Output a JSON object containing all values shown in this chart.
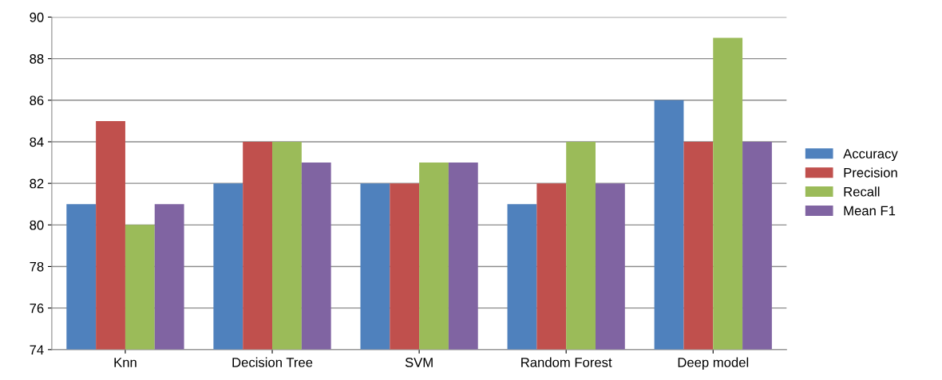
{
  "chart_data": {
    "type": "bar",
    "categories": [
      "Knn",
      "Decision Tree",
      "SVM",
      "Random Forest",
      "Deep model"
    ],
    "series": [
      {
        "name": "Accuracy",
        "color": "#4f81bd",
        "values": [
          81,
          82,
          82,
          81,
          86
        ]
      },
      {
        "name": "Precision",
        "color": "#c0504d",
        "values": [
          85,
          84,
          82,
          82,
          84
        ]
      },
      {
        "name": "Recall",
        "color": "#9bbb59",
        "values": [
          80,
          84,
          83,
          84,
          89
        ]
      },
      {
        "name": "Mean F1",
        "color": "#8064a2",
        "values": [
          81,
          83,
          83,
          82,
          84
        ]
      }
    ],
    "ylim": [
      74,
      90
    ],
    "yticks": [
      74,
      76,
      78,
      80,
      82,
      84,
      86,
      88,
      90
    ],
    "grid": "y",
    "legend": "right"
  }
}
